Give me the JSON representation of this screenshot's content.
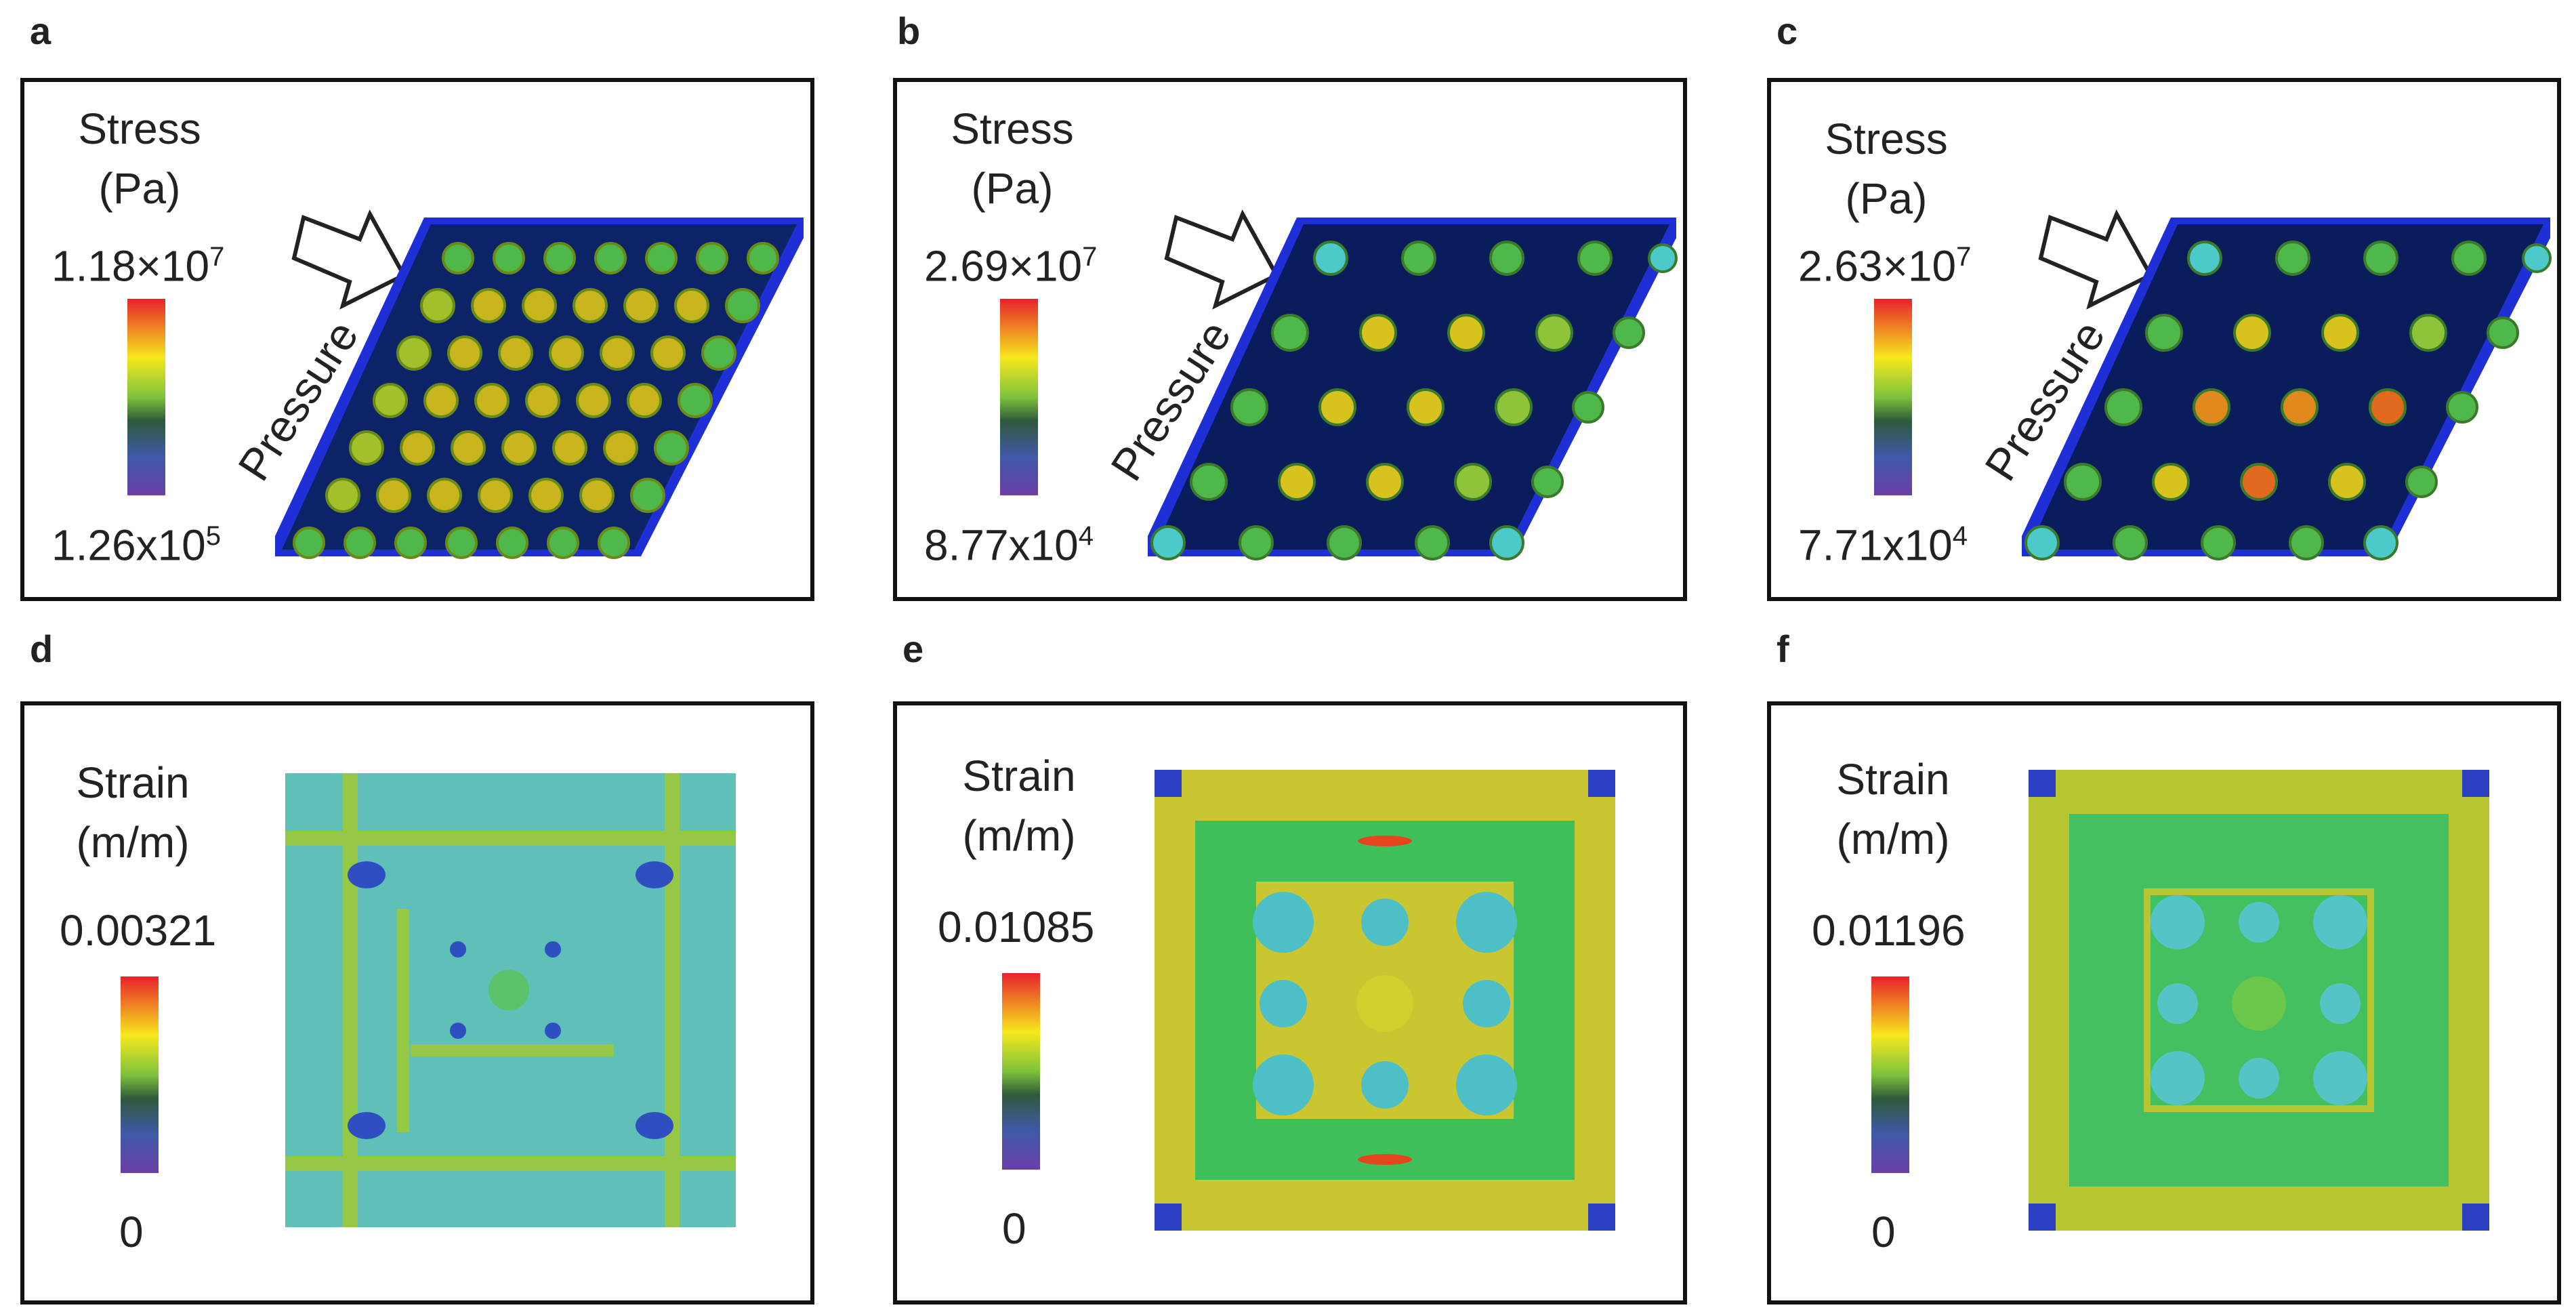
{
  "panels": {
    "a": {
      "letter": "a",
      "title_line1": "Stress",
      "title_line2": "(Pa)",
      "max_base": "1.18×10",
      "max_exp": "7",
      "min_base": "1.26x10",
      "min_exp": "5",
      "arrow_label": "Pressure"
    },
    "b": {
      "letter": "b",
      "title_line1": "Stress",
      "title_line2": "(Pa)",
      "max_base": "2.69×10",
      "max_exp": "7",
      "min_base": "8.77x10",
      "min_exp": "4",
      "arrow_label": "Pressure"
    },
    "c": {
      "letter": "c",
      "title_line1": "Stress",
      "title_line2": "(Pa)",
      "max_base": "2.63×10",
      "max_exp": "7",
      "min_base": "7.71x10",
      "min_exp": "4",
      "arrow_label": "Pressure"
    },
    "d": {
      "letter": "d",
      "title_line1": "Strain",
      "title_line2": "(m/m)",
      "max": "0.00321",
      "min": "0"
    },
    "e": {
      "letter": "e",
      "title_line1": "Strain",
      "title_line2": "(m/m)",
      "max": "0.01085",
      "min": "0"
    },
    "f": {
      "letter": "f",
      "title_line1": "Strain",
      "title_line2": "(m/m)",
      "max": "0.01196",
      "min": "0"
    }
  },
  "colors": {
    "colormap": [
      "#e8222c",
      "#f6e81c",
      "#7dc23c",
      "#2f5a3a",
      "#3f59a8",
      "#6b3fa6"
    ],
    "plate_edge": "#1f2fd6",
    "plate_top": "#0b1e63",
    "strain_base": "#5fc67a"
  }
}
